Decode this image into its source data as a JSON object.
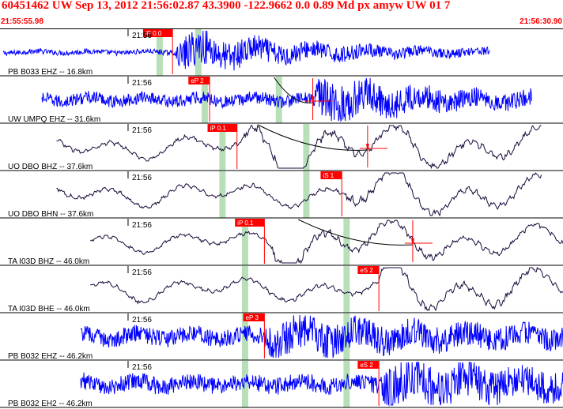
{
  "header": {
    "title": "60451462 UW Sep 13, 2012 21:56:02.87    43.3900 -122.9662  0.0 0.89 Md px amyw UW 01    7",
    "time_start": "21:55:55.98",
    "time_end": "21:56:30.90"
  },
  "chart_data": {
    "type": "line",
    "title": "",
    "xlabel": "",
    "ylabel": "",
    "time_window": [
      "21:55:55.98",
      "21:56:30.90"
    ],
    "window_seconds": 34.92,
    "minute_tick_label": "21:56",
    "minute_tick_offset_s": 4.02,
    "colors": {
      "short_period": "#0000ff",
      "broadband": "#1a0a3a",
      "pick": "#ff0000",
      "window": "#b8e0b8",
      "frame": "#000000"
    },
    "traces": [
      {
        "label": "PB B033 EHZ -- 16.8km",
        "color": "#0000ff",
        "style": "short",
        "signal_start_s": 0.2,
        "signal_end_s": 30.4,
        "amp": 0.12,
        "event_s": 10.9,
        "event_amp": 0.9,
        "decay_s": 8,
        "pick": {
          "label": "iP 0.0",
          "time_s": 10.7,
          "weight": ""
        },
        "windows_s": [
          9.9,
          12.3
        ]
      },
      {
        "label": "UW UMPQ EHZ -- 31.6km",
        "color": "#0000ff",
        "style": "short",
        "signal_start_s": 2.6,
        "signal_end_s": 33.0,
        "amp": 0.3,
        "event_s": 19.4,
        "event_amp": 0.9,
        "decay_s": 6,
        "pick": {
          "label": "eP 2",
          "time_s": 13.0,
          "weight": ""
        },
        "windows_s": [
          12.7,
          17.3
        ],
        "s_pick_s": 19.4,
        "curve_span_s": [
          17.0,
          20.5
        ]
      },
      {
        "label": "UO DBO BHZ -- 37.6km",
        "color": "#1a0a3a",
        "style": "long",
        "signal_start_s": 3.5,
        "signal_end_s": 33.6,
        "amp": 0.5,
        "event_s": 15.0,
        "event_amp": 0.95,
        "decay_s": 14,
        "pick": {
          "label": "iP 0.1",
          "time_s": 14.7,
          "weight": ""
        },
        "windows_s": [
          13.8,
          19.0
        ],
        "s_pick_s": 22.8,
        "curve_span_s": [
          16.0,
          24.0
        ]
      },
      {
        "label": "UO DBO BHN -- 37.6km",
        "color": "#1a0a3a",
        "style": "long",
        "signal_start_s": 3.5,
        "signal_end_s": 33.6,
        "amp": 0.5,
        "event_s": 21.2,
        "event_amp": 0.8,
        "decay_s": 10,
        "pick": {
          "label": "iS 1",
          "time_s": 21.2,
          "weight": ""
        },
        "windows_s": [
          13.8,
          19.0
        ]
      },
      {
        "label": "TA I03D BHZ -- 46.0km",
        "color": "#1a0a3a",
        "style": "long",
        "signal_start_s": 5.6,
        "signal_end_s": 35.0,
        "amp": 0.45,
        "event_s": 16.4,
        "event_amp": 0.75,
        "decay_s": 14,
        "pick": {
          "label": "iP 0.1",
          "time_s": 16.4,
          "weight": ""
        },
        "windows_s": [
          15.2,
          21.5
        ],
        "s_pick_s": 25.6,
        "curve_span_s": [
          18.5,
          25.6
        ]
      },
      {
        "label": "TA I03D BHE -- 46.0km",
        "color": "#1a0a3a",
        "style": "long",
        "signal_start_s": 5.6,
        "signal_end_s": 35.0,
        "amp": 0.5,
        "event_s": 23.5,
        "event_amp": 0.8,
        "decay_s": 10,
        "pick": {
          "label": "eS 2",
          "time_s": 23.5,
          "weight": ""
        },
        "windows_s": [
          15.2,
          21.5
        ]
      },
      {
        "label": "PB B032 EHZ -- 46.2km",
        "color": "#0000ff",
        "style": "short",
        "signal_start_s": 5.0,
        "signal_end_s": 35.0,
        "amp": 0.4,
        "event_s": 16.4,
        "event_amp": 0.55,
        "decay_s": 12,
        "pick": {
          "label": "eP 3",
          "time_s": 16.4,
          "weight": ""
        },
        "windows_s": [
          15.2,
          21.5
        ]
      },
      {
        "label": "PB B032 EH2 -- 46.2km",
        "color": "#0000ff",
        "style": "short",
        "signal_start_s": 5.0,
        "signal_end_s": 35.0,
        "amp": 0.4,
        "event_s": 23.5,
        "event_amp": 0.75,
        "decay_s": 12,
        "pick": {
          "label": "eS 2",
          "time_s": 23.5,
          "weight": ""
        },
        "windows_s": [
          15.2,
          21.5
        ]
      }
    ]
  }
}
